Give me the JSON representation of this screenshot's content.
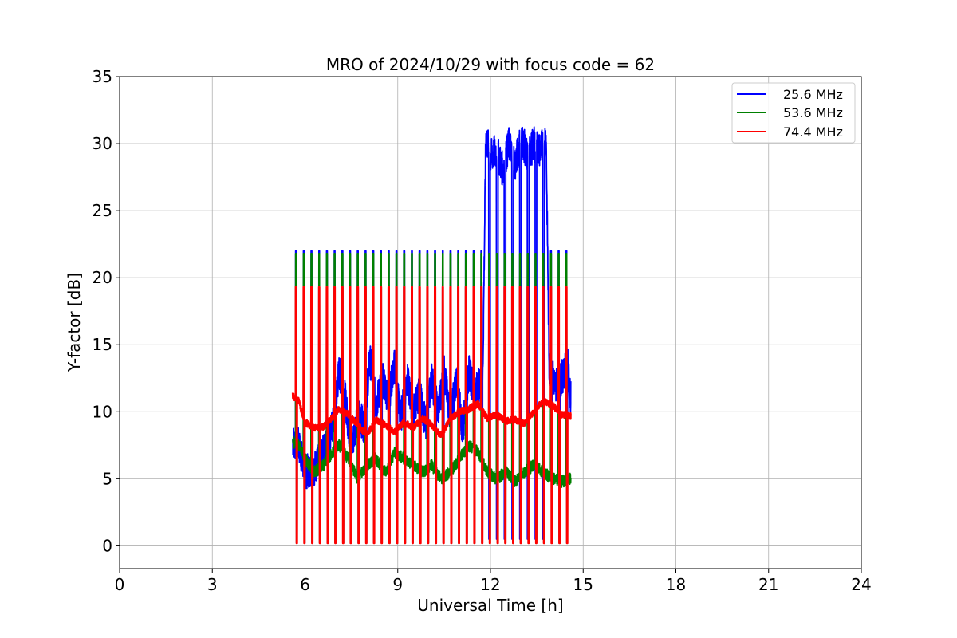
{
  "chart_data": {
    "type": "line",
    "title": "MRO of 2024/10/29 with focus code = 62",
    "xlabel": "Universal Time [h]",
    "ylabel": "Y-factor [dB]",
    "xlim": [
      0,
      24
    ],
    "ylim": [
      -1.7,
      35
    ],
    "xticks": [
      0,
      3,
      6,
      9,
      12,
      15,
      18,
      21,
      24
    ],
    "yticks": [
      0,
      5,
      10,
      15,
      20,
      25,
      30,
      35
    ],
    "grid": true,
    "legend_position": "top-right",
    "x_start": 5.6,
    "x_end": 14.6,
    "pulse_times": [
      5.72,
      5.97,
      6.22,
      6.47,
      6.72,
      6.97,
      7.22,
      7.47,
      7.72,
      7.97,
      8.22,
      8.47,
      8.72,
      8.97,
      9.22,
      9.47,
      9.72,
      9.97,
      10.22,
      10.47,
      10.72,
      10.97,
      11.22,
      11.47,
      11.72,
      11.97,
      12.22,
      12.47,
      12.72,
      12.97,
      13.22,
      13.47,
      13.72,
      13.97,
      14.22,
      14.47
    ],
    "series": [
      {
        "name": "25.6 MHz",
        "color": "#0000ff",
        "pulse_peak": 22.0,
        "x": [
          5.6,
          5.8,
          6.0,
          6.3,
          6.6,
          6.9,
          7.1,
          7.3,
          7.5,
          7.7,
          7.9,
          8.1,
          8.3,
          8.5,
          8.7,
          8.9,
          9.1,
          9.3,
          9.5,
          9.7,
          9.9,
          10.1,
          10.3,
          10.5,
          10.7,
          10.9,
          11.1,
          11.3,
          11.5,
          11.75,
          11.85,
          12.0,
          12.2,
          12.4,
          12.6,
          12.8,
          13.0,
          13.2,
          13.4,
          13.6,
          13.8,
          13.9,
          14.1,
          14.3,
          14.5,
          14.6
        ],
        "y": [
          7.8,
          7.5,
          5.5,
          5.8,
          7.0,
          9.0,
          13.0,
          11.0,
          7.0,
          10.0,
          9.0,
          14.0,
          10.5,
          12.5,
          11.0,
          13.5,
          9.5,
          12.5,
          10.0,
          11.5,
          9.0,
          12.5,
          10.0,
          13.0,
          9.5,
          12.5,
          8.5,
          13.0,
          11.5,
          12.5,
          30.5,
          29.0,
          29.5,
          28.0,
          30.0,
          28.5,
          30.5,
          29.0,
          30.0,
          29.5,
          30.5,
          13.5,
          12.0,
          12.5,
          13.5,
          11.0
        ]
      },
      {
        "name": "53.6 MHz",
        "color": "#008000",
        "pulse_peak": 21.8,
        "x": [
          5.6,
          5.8,
          6.0,
          6.3,
          6.6,
          6.9,
          7.1,
          7.4,
          7.7,
          8.0,
          8.3,
          8.6,
          8.9,
          9.2,
          9.5,
          9.8,
          10.1,
          10.4,
          10.7,
          11.0,
          11.3,
          11.6,
          11.9,
          12.2,
          12.5,
          12.8,
          13.1,
          13.4,
          13.7,
          14.0,
          14.3,
          14.6
        ],
        "y": [
          7.8,
          7.5,
          6.5,
          5.5,
          6.0,
          7.0,
          7.5,
          6.5,
          5.0,
          6.0,
          6.5,
          5.5,
          7.0,
          6.5,
          6.0,
          5.5,
          6.0,
          5.0,
          5.5,
          6.5,
          7.5,
          7.0,
          5.5,
          5.0,
          5.5,
          4.8,
          5.5,
          6.0,
          5.5,
          5.0,
          4.8,
          5.0
        ]
      },
      {
        "name": "74.4 MHz",
        "color": "#ff0000",
        "pulse_peak": 19.3,
        "x": [
          5.6,
          5.8,
          6.0,
          6.3,
          6.6,
          6.9,
          7.1,
          7.4,
          7.7,
          8.0,
          8.3,
          8.6,
          8.9,
          9.2,
          9.5,
          9.8,
          10.1,
          10.4,
          10.7,
          11.0,
          11.3,
          11.6,
          11.9,
          12.2,
          12.5,
          12.8,
          13.1,
          13.4,
          13.7,
          14.0,
          14.3,
          14.6
        ],
        "y": [
          11.2,
          10.8,
          9.2,
          8.8,
          8.9,
          9.6,
          10.2,
          9.8,
          9.0,
          8.3,
          9.4,
          9.0,
          8.5,
          9.2,
          8.8,
          9.5,
          9.0,
          8.2,
          9.5,
          10.0,
          10.2,
          10.6,
          9.5,
          9.8,
          9.3,
          9.4,
          9.1,
          10.0,
          10.8,
          10.5,
          9.8,
          9.7
        ]
      }
    ]
  }
}
